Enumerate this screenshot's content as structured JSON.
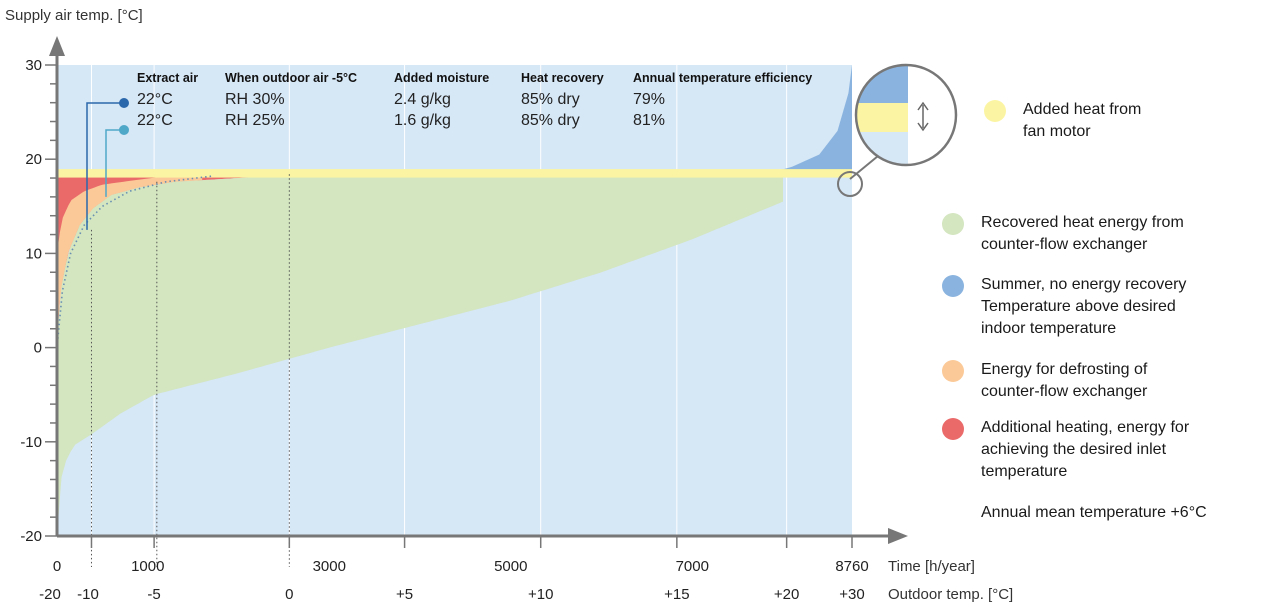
{
  "chart_data": {
    "type": "area",
    "ylabel": "Supply air temp. [°C]",
    "xlabel": "Time [h/year]",
    "x2label": "Outdoor temp. [°C]",
    "xlim": [
      0,
      8760
    ],
    "ylim": [
      -20,
      30
    ],
    "xticks": [
      {
        "x": 0,
        "label": "0"
      },
      {
        "x": 1000,
        "label": "1000"
      },
      {
        "x": 3000,
        "label": "3000"
      },
      {
        "x": 5000,
        "label": "5000"
      },
      {
        "x": 7000,
        "label": "7000"
      },
      {
        "x": 8760,
        "label": "8760"
      }
    ],
    "x2ticks": [
      {
        "x": 0,
        "label": "-20"
      },
      {
        "x": 380,
        "label": "-10"
      },
      {
        "x": 1070,
        "label": "-5"
      },
      {
        "x": 2560,
        "label": "0"
      },
      {
        "x": 3830,
        "label": "+5"
      },
      {
        "x": 5330,
        "label": "+10"
      },
      {
        "x": 6830,
        "label": "+15"
      },
      {
        "x": 8040,
        "label": "+20"
      },
      {
        "x": 8760,
        "label": "+30"
      }
    ],
    "yticks": [
      -20,
      -10,
      0,
      10,
      20,
      30
    ],
    "desired_supply_temp": 18.5,
    "outdoor_temp_curve": [
      [
        0,
        -20
      ],
      [
        20,
        -16
      ],
      [
        60,
        -13
      ],
      [
        120,
        -11.5
      ],
      [
        200,
        -10.3
      ],
      [
        380,
        -9.2
      ],
      [
        700,
        -7
      ],
      [
        1070,
        -5
      ],
      [
        2000,
        -2.7
      ],
      [
        3000,
        0
      ],
      [
        4000,
        2.5
      ],
      [
        5000,
        5
      ],
      [
        6000,
        8
      ],
      [
        7000,
        11.5
      ],
      [
        8000,
        15.5
      ],
      [
        8760,
        18.5
      ]
    ],
    "recovered_heat_top_curve": [
      [
        0,
        1
      ],
      [
        40,
        6
      ],
      [
        120,
        10
      ],
      [
        250,
        13
      ],
      [
        400,
        14.8
      ],
      [
        600,
        16.2
      ],
      [
        900,
        17
      ],
      [
        1300,
        17.6
      ],
      [
        2000,
        18
      ],
      [
        2600,
        18.3
      ],
      [
        8000,
        18.5
      ],
      [
        8760,
        18.5
      ]
    ],
    "defrost_top_curve": [
      [
        0,
        10
      ],
      [
        50,
        13.5
      ],
      [
        150,
        15.6
      ],
      [
        300,
        16.6
      ],
      [
        500,
        17.3
      ],
      [
        800,
        17.7
      ],
      [
        1200,
        18.2
      ],
      [
        1600,
        18.5
      ]
    ],
    "summer_curve": [
      [
        7850,
        18.5
      ],
      [
        8100,
        19.2
      ],
      [
        8400,
        20.5
      ],
      [
        8600,
        23
      ],
      [
        8720,
        27
      ],
      [
        8760,
        30
      ]
    ],
    "series": [
      {
        "name": "Recovered heat energy from counter-flow exchanger",
        "color": "#d3e6bf"
      },
      {
        "name": "Summer, no energy recovery\nTemperature above desired indoor temperature",
        "color": "#8ab4df"
      },
      {
        "name": "Energy for defrosting of counter-flow exchanger",
        "color": "#fbc997"
      },
      {
        "name": "Additional heating, energy for achieving the desired inlet temperature",
        "color": "#ea6a6a"
      },
      {
        "name": "Added heat from fan motor",
        "color": "#fbf5a3"
      }
    ],
    "table": {
      "columns": [
        "Extract air",
        "When outdoor air -5°C",
        "Added moisture",
        "Heat recovery",
        "Annual temperature efficiency"
      ],
      "rows": [
        {
          "marker_color": "#2b68ab",
          "values": [
            "22°C",
            "RH 30%",
            "2.4 g/kg",
            "85% dry",
            "79%"
          ],
          "annotation_x": 380,
          "annotation_y": 12.5
        },
        {
          "marker_color": "#4fa8c8",
          "values": [
            "22°C",
            "RH 25%",
            "1.6 g/kg",
            "85% dry",
            "81%"
          ],
          "annotation_x": 560,
          "annotation_y": 16
        }
      ]
    },
    "colors": {
      "background": "#d6e7f6",
      "axis": "#777777",
      "gridline": "#ffffff",
      "dotted_line": "#6a8fb3",
      "guide_line": "#555555"
    }
  },
  "legend": {
    "fan_motor": "Added heat from\nfan motor",
    "recovered": "Recovered heat energy from\ncounter-flow exchanger",
    "summer": "Summer, no energy recovery\nTemperature above desired\nindoor temperature",
    "defrost": "Energy for defrosting of\ncounter-flow exchanger",
    "additional": "Additional heating, energy for\nachieving the desired inlet\ntemperature",
    "annual_mean": "Annual mean temperature +6°C"
  }
}
